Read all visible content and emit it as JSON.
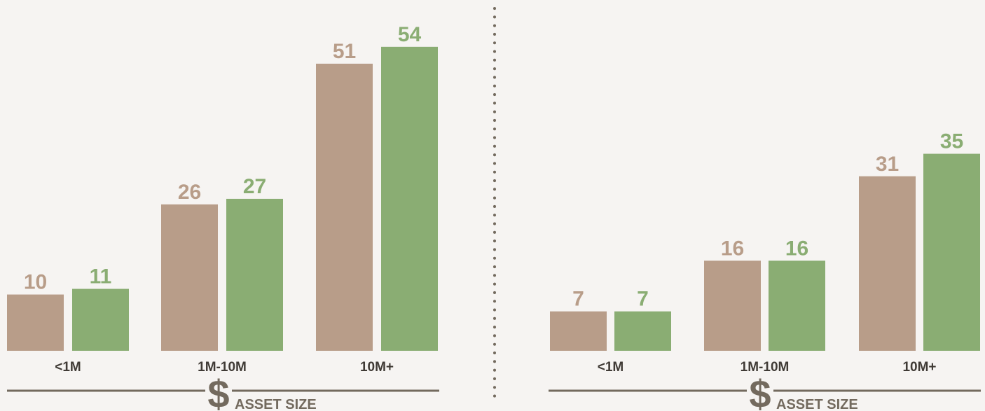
{
  "colors": {
    "series_a": "#b89d89",
    "series_b": "#8aad73",
    "axis": "#736a5e",
    "divider": "#736a5e",
    "category_text": "#3f3a35",
    "background": "#f6f4f2"
  },
  "footer": {
    "icon": "dollar-icon",
    "dollar_symbol": "$",
    "axis_title": "ASSET SIZE"
  },
  "chart_data": [
    {
      "type": "bar",
      "categories": [
        "<1M",
        "1M-10M",
        "10M+"
      ],
      "series": [
        {
          "color": "#b89d89",
          "values": [
            10,
            26,
            51
          ]
        },
        {
          "color": "#8aad73",
          "values": [
            11,
            27,
            54
          ]
        }
      ],
      "xlabel": "ASSET SIZE",
      "ylabel": "",
      "ylim": [
        0,
        54
      ],
      "grid": false,
      "data_labels": true
    },
    {
      "type": "bar",
      "categories": [
        "<1M",
        "1M-10M",
        "10M+"
      ],
      "series": [
        {
          "color": "#b89d89",
          "values": [
            7,
            16,
            31
          ]
        },
        {
          "color": "#8aad73",
          "values": [
            7,
            16,
            35
          ]
        }
      ],
      "xlabel": "ASSET SIZE",
      "ylabel": "",
      "ylim": [
        0,
        54
      ],
      "grid": false,
      "data_labels": true
    }
  ]
}
